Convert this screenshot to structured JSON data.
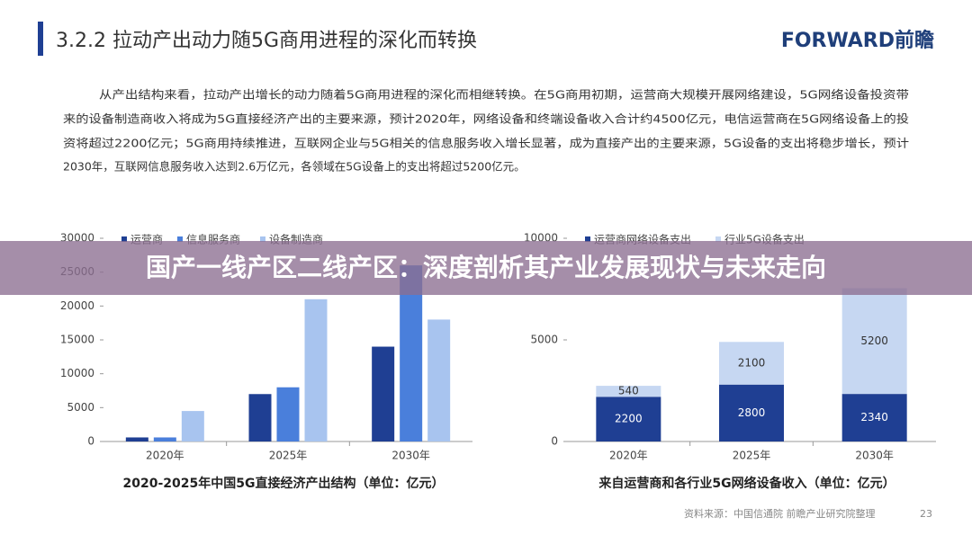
{
  "header": {
    "title": "3.2.2 拉动产出动力随5G商用进程的深化而转换",
    "logo": "FORWARD前瞻"
  },
  "paragraph": [
    "从产出结构来看，拉动产出增长的动力随着5G商用进程的深化而相继转换。在5G商用初期，运营商大规模开展网络建设，5G网络设备投资带",
    "来的设备制造商收入将成为5G直接经济产出的主要来源，预计2020年，网络设备和终端设备收入合计约4500亿元，电信运营商在5G网络设备上的投",
    "资将超过2200亿元；5G商用持续推进，互联网企业与5G相关的信息服务收入增长显著，成为直接产出的主要来源，5G设备的支出将稳步增长，预计",
    "2030年，互联网信息服务收入达到2.6万亿元，各领域在5G设备上的支出将超过5200亿元。"
  ],
  "chart_data": [
    {
      "type": "bar",
      "title": "2020-2025年中国5G直接经济产出结构（单位：亿元）",
      "categories": [
        "2020年",
        "2025年",
        "2030年"
      ],
      "series": [
        {
          "name": "运营商",
          "color": "#1f3f93",
          "values": [
            600,
            7000,
            14000
          ]
        },
        {
          "name": "信息服务商",
          "color": "#4a7fdb",
          "values": [
            600,
            8000,
            26000
          ]
        },
        {
          "name": "设备制造商",
          "color": "#a8c4ef",
          "values": [
            4500,
            21000,
            18000
          ]
        }
      ],
      "ylim": [
        0,
        30000
      ],
      "yticks": [
        0,
        5000,
        10000,
        15000,
        20000,
        25000,
        30000
      ],
      "stacked": false
    },
    {
      "type": "bar",
      "title": "来自运营商和各行业5G网络设备收入（单位：亿元）",
      "categories": [
        "2020年",
        "2025年",
        "2030年"
      ],
      "series": [
        {
          "name": "运营商网络设备支出",
          "color": "#1f3f93",
          "values": [
            2200,
            2800,
            2340
          ]
        },
        {
          "name": "行业5G设备支出",
          "color": "#c6d7f2",
          "values": [
            540,
            2100,
            5200
          ]
        }
      ],
      "ylim": [
        0,
        10000
      ],
      "yticks": [
        0,
        5000,
        10000
      ],
      "stacked": true
    }
  ],
  "banner": "国产一线产区二线产区：深度剖析其产业发展现状与未来走向",
  "footer": {
    "source": "资料来源：中国信通院 前瞻产业研究院整理",
    "page": "23"
  }
}
